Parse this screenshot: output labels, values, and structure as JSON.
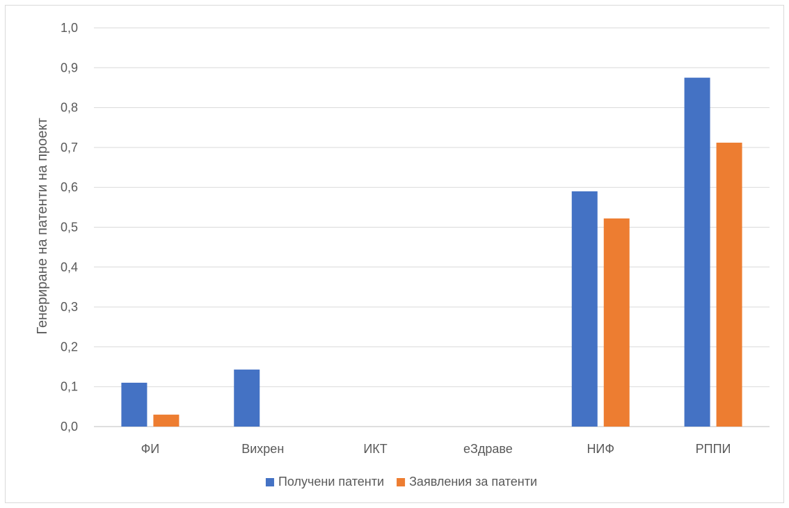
{
  "chart_data": {
    "type": "bar",
    "title": "",
    "xlabel": "",
    "ylabel": "Генериране на патенти на проект",
    "ylim": [
      0,
      1.0
    ],
    "yticks": [
      "0,0",
      "0,1",
      "0,2",
      "0,3",
      "0,4",
      "0,5",
      "0,6",
      "0,7",
      "0,8",
      "0,9",
      "1,0"
    ],
    "categories": [
      "ФИ",
      "Вихрен",
      "ИКТ",
      "еЗдраве",
      "НИФ",
      "РППИ"
    ],
    "series": [
      {
        "name": "Получени патенти",
        "color": "#4472C4",
        "values": [
          0.11,
          0.143,
          0,
          0,
          0.59,
          0.875
        ]
      },
      {
        "name": "Заявления за патенти",
        "color": "#ED7D31",
        "values": [
          0.03,
          0,
          0,
          0,
          0.522,
          0.712
        ]
      }
    ],
    "grid": true,
    "legend_position": "bottom"
  }
}
